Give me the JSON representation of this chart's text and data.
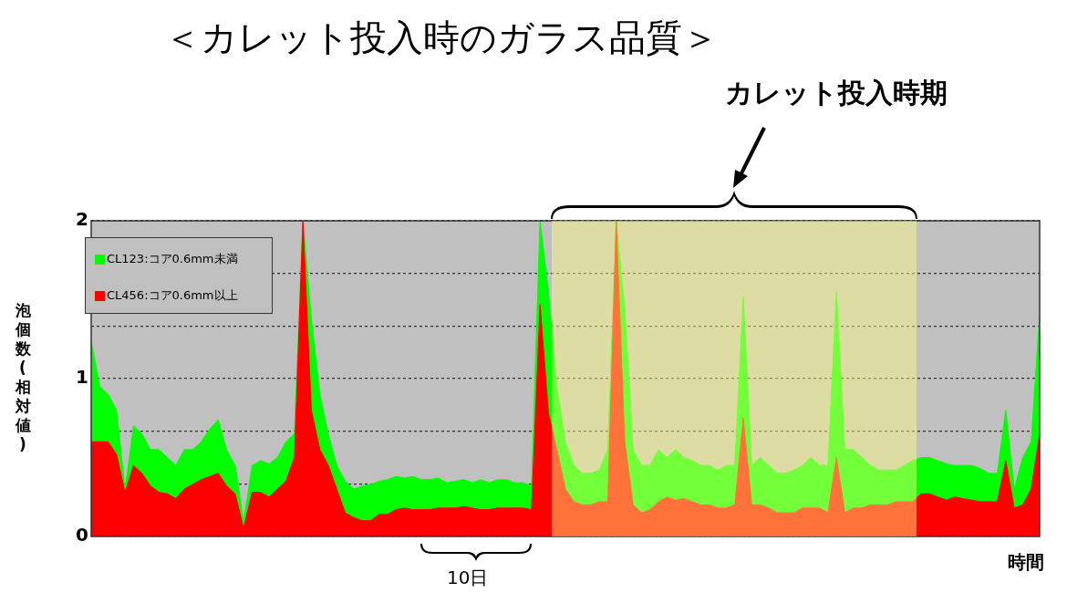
{
  "chart_data": {
    "type": "area",
    "title": "＜カレット投入時のガラス品質＞",
    "xlabel": "時間",
    "ylabel": "泡個数(相対値)",
    "stacked": true,
    "grid": "y",
    "legend": "top left",
    "tick_labels": "y",
    "categories": [
      null,
      null,
      null,
      null,
      null,
      null,
      null,
      null,
      null,
      null,
      null,
      null,
      null,
      null,
      null,
      null,
      null,
      null,
      null,
      null,
      null,
      null,
      null,
      null,
      null,
      null,
      null,
      null,
      null,
      null,
      null,
      null,
      null,
      null,
      null,
      null,
      null,
      null,
      null,
      null,
      null,
      null,
      null,
      null,
      null,
      null,
      null,
      null,
      null,
      null,
      null,
      null,
      null,
      null,
      null,
      null,
      null,
      null,
      null,
      null,
      null,
      null,
      null,
      null,
      null,
      null,
      null,
      null,
      null,
      null,
      null,
      null,
      null,
      null,
      null,
      null,
      null,
      null,
      null,
      null,
      null,
      null,
      null,
      null,
      null,
      null,
      null,
      null,
      null,
      null,
      null,
      null,
      null,
      null,
      null,
      null,
      null,
      null,
      null,
      null,
      null,
      null,
      null,
      null,
      null,
      null,
      null,
      null,
      null,
      null,
      null,
      null,
      null
    ],
    "ylim": [
      0,
      2
    ],
    "yticks": [
      0,
      {
        "value": 0.333,
        "label": null
      },
      {
        "value": 0.667,
        "label": null
      },
      1,
      {
        "value": 1.333,
        "label": null
      },
      {
        "value": 1.667,
        "label": null
      },
      2
    ],
    "series": [
      {
        "name": "CL456:コア0.6mm以上",
        "color": "#ff0000",
        "values": [
          0.6,
          0.6,
          0.6,
          0.52,
          0.28,
          0.45,
          0.4,
          0.32,
          0.28,
          0.27,
          0.24,
          0.3,
          0.33,
          0.36,
          0.38,
          0.4,
          0.32,
          0.27,
          0.05,
          0.28,
          0.28,
          0.25,
          0.3,
          0.35,
          0.5,
          2.0,
          0.8,
          0.55,
          0.45,
          0.3,
          0.15,
          0.12,
          0.1,
          0.1,
          0.14,
          0.14,
          0.17,
          0.18,
          0.17,
          0.17,
          0.17,
          0.18,
          0.18,
          0.18,
          0.19,
          0.18,
          0.17,
          0.17,
          0.18,
          0.18,
          0.18,
          0.18,
          0.17,
          1.47,
          0.78,
          0.55,
          0.3,
          0.22,
          0.2,
          0.2,
          0.22,
          0.22,
          2.0,
          0.6,
          0.2,
          0.15,
          0.17,
          0.22,
          0.25,
          0.23,
          0.24,
          0.22,
          0.2,
          0.2,
          0.18,
          0.18,
          0.2,
          0.75,
          0.2,
          0.2,
          0.18,
          0.15,
          0.15,
          0.15,
          0.18,
          0.18,
          0.18,
          0.15,
          0.5,
          0.15,
          0.18,
          0.18,
          0.2,
          0.2,
          0.2,
          0.22,
          0.22,
          0.22,
          0.27,
          0.27,
          0.25,
          0.23,
          0.25,
          0.24,
          0.23,
          0.22,
          0.22,
          0.22,
          0.48,
          0.18,
          0.2,
          0.3,
          0.65
        ]
      },
      {
        "name": "CL123:コア0.6mm未満",
        "color": "#00ff00",
        "values": [
          0.64,
          0.35,
          0.3,
          0.28,
          0.02,
          0.25,
          0.25,
          0.23,
          0.27,
          0.23,
          0.21,
          0.25,
          0.22,
          0.24,
          0.3,
          0.34,
          0.23,
          0.18,
          0.04,
          0.17,
          0.2,
          0.21,
          0.2,
          0.25,
          0.15,
          0,
          0.58,
          0.35,
          0.2,
          0.15,
          0.2,
          0.18,
          0.22,
          0.23,
          0.21,
          0.22,
          0.21,
          0.19,
          0.21,
          0.19,
          0.19,
          0.19,
          0.16,
          0.17,
          0.17,
          0.16,
          0.19,
          0.17,
          0.18,
          0.18,
          0.16,
          0.16,
          0.15,
          0.53,
          0.77,
          0.4,
          0.3,
          0.23,
          0.2,
          0.2,
          0.2,
          0.33,
          0,
          0.85,
          0.35,
          0.3,
          0.28,
          0.33,
          0.25,
          0.32,
          0.26,
          0.26,
          0.25,
          0.25,
          0.24,
          0.27,
          0.25,
          0.77,
          0.25,
          0.3,
          0.27,
          0.25,
          0.25,
          0.27,
          0.27,
          0.32,
          0.27,
          0.3,
          1.05,
          0.4,
          0.37,
          0.32,
          0.25,
          0.22,
          0.22,
          0.2,
          0.23,
          0.26,
          0.23,
          0.23,
          0.23,
          0.23,
          0.2,
          0.21,
          0.22,
          0.21,
          0.18,
          0.18,
          0.32,
          0.12,
          0.3,
          0.3,
          0.75
        ]
      }
    ],
    "annotations": [
      "カレット投入時期",
      "10日"
    ]
  }
}
